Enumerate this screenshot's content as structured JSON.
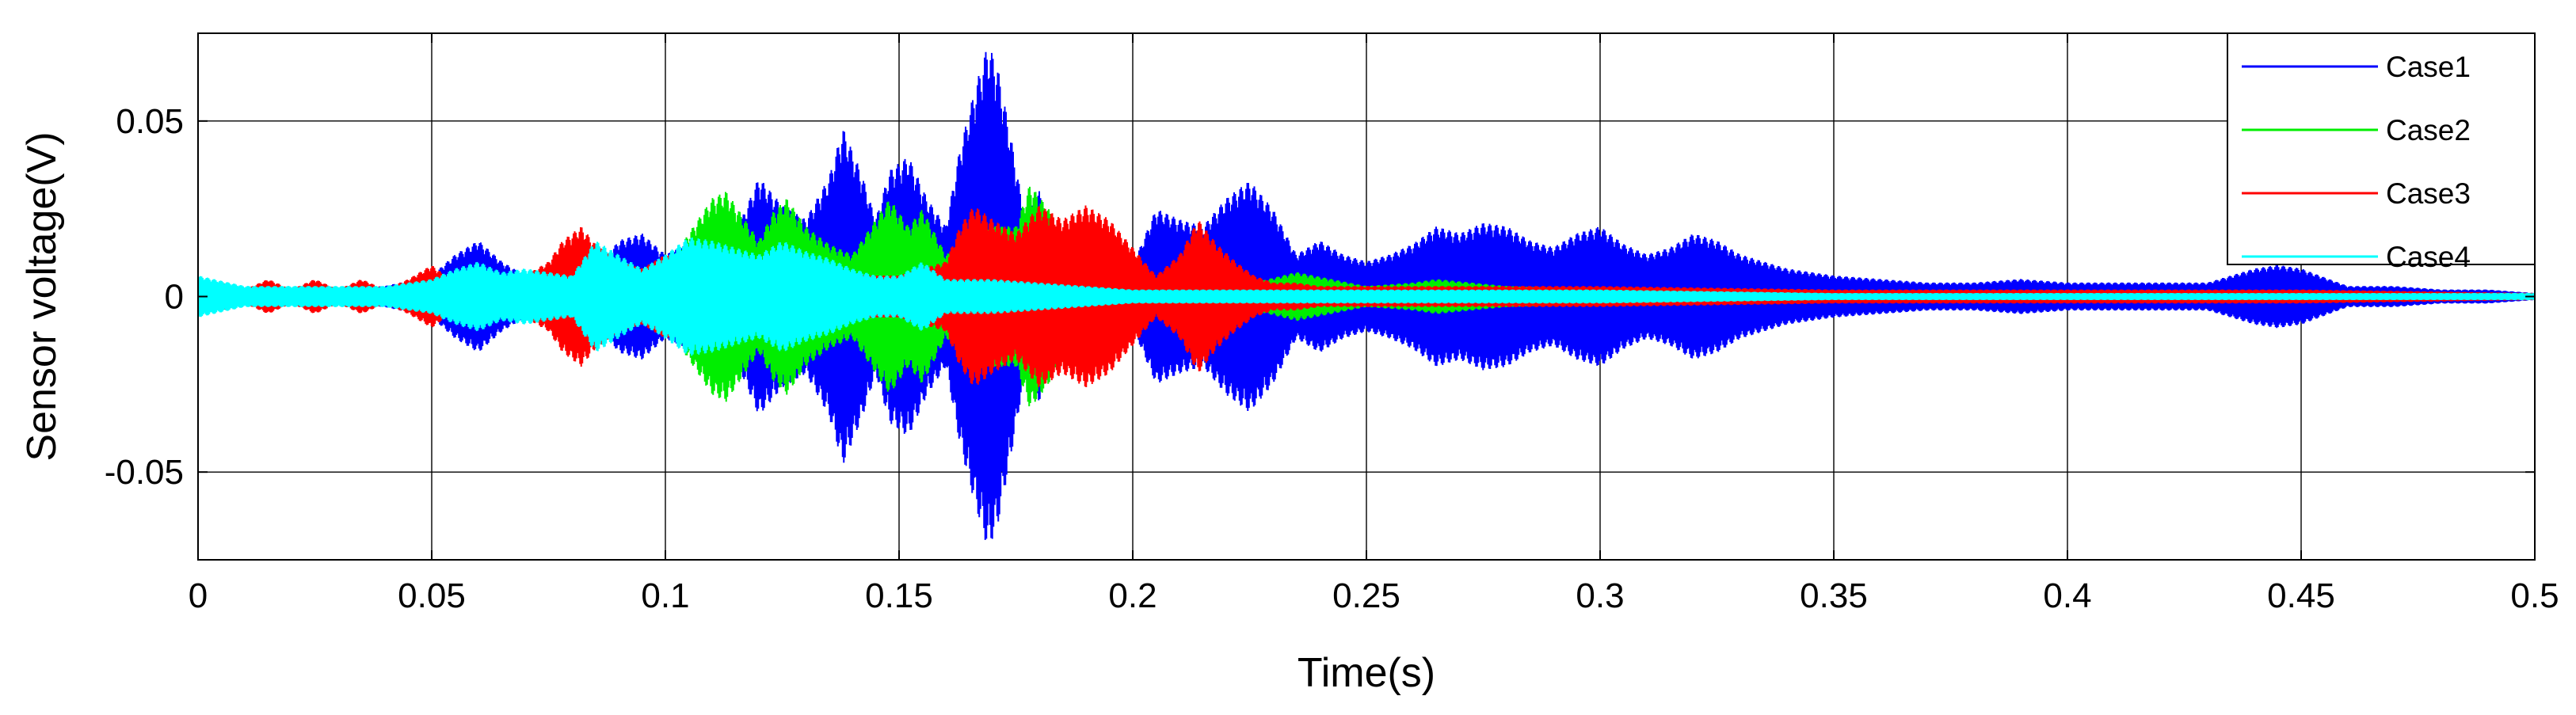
{
  "chart_data": {
    "type": "line",
    "title": "",
    "xlabel": "Time(s)",
    "ylabel": "Sensor voltage(V)",
    "xlim": [
      0,
      0.5
    ],
    "ylim": [
      -0.075,
      0.075
    ],
    "grid": true,
    "legend_position": "top-right",
    "x_ticks": [
      0,
      0.05,
      0.1,
      0.15,
      0.2,
      0.25,
      0.3,
      0.35,
      0.4,
      0.45,
      0.5
    ],
    "x_tick_labels": [
      "0",
      "0.05",
      "0.1",
      "0.15",
      "0.2",
      "0.25",
      "0.3",
      "0.35",
      "0.4",
      "0.45",
      "0.5"
    ],
    "y_ticks": [
      0.05,
      0,
      -0.05
    ],
    "y_tick_labels": [
      "0.05",
      "0",
      "-0.05"
    ],
    "series": [
      {
        "name": "Case1",
        "color": "#0000ff",
        "envelope": {
          "x": [
            0,
            0.01,
            0.02,
            0.03,
            0.04,
            0.05,
            0.055,
            0.06,
            0.065,
            0.07,
            0.075,
            0.08,
            0.085,
            0.09,
            0.095,
            0.1,
            0.105,
            0.11,
            0.115,
            0.12,
            0.125,
            0.13,
            0.135,
            0.138,
            0.142,
            0.145,
            0.148,
            0.152,
            0.156,
            0.16,
            0.163,
            0.166,
            0.169,
            0.171,
            0.174,
            0.177,
            0.18,
            0.183,
            0.186,
            0.19,
            0.195,
            0.2,
            0.205,
            0.21,
            0.215,
            0.22,
            0.225,
            0.23,
            0.235,
            0.24,
            0.245,
            0.25,
            0.255,
            0.26,
            0.265,
            0.27,
            0.275,
            0.28,
            0.285,
            0.29,
            0.295,
            0.3,
            0.305,
            0.31,
            0.315,
            0.32,
            0.325,
            0.33,
            0.335,
            0.34,
            0.345,
            0.35,
            0.36,
            0.37,
            0.38,
            0.39,
            0.4,
            0.41,
            0.42,
            0.43,
            0.44,
            0.445,
            0.45,
            0.46,
            0.47,
            0.48,
            0.49,
            0.5
          ],
          "amplitude": [
            0.002,
            0.002,
            0.002,
            0.002,
            0.003,
            0.006,
            0.012,
            0.016,
            0.01,
            0.006,
            0.008,
            0.01,
            0.007,
            0.016,
            0.018,
            0.012,
            0.015,
            0.014,
            0.018,
            0.034,
            0.026,
            0.022,
            0.034,
            0.048,
            0.035,
            0.022,
            0.036,
            0.04,
            0.028,
            0.02,
            0.042,
            0.058,
            0.072,
            0.066,
            0.045,
            0.022,
            0.03,
            0.018,
            0.014,
            0.012,
            0.01,
            0.009,
            0.025,
            0.022,
            0.02,
            0.028,
            0.033,
            0.025,
            0.012,
            0.016,
            0.012,
            0.01,
            0.012,
            0.015,
            0.02,
            0.018,
            0.021,
            0.02,
            0.016,
            0.014,
            0.018,
            0.02,
            0.015,
            0.012,
            0.014,
            0.018,
            0.016,
            0.012,
            0.01,
            0.008,
            0.007,
            0.006,
            0.005,
            0.004,
            0.004,
            0.005,
            0.004,
            0.004,
            0.004,
            0.004,
            0.008,
            0.009,
            0.008,
            0.003,
            0.003,
            0.002,
            0.002,
            0.001
          ]
        }
      },
      {
        "name": "Case2",
        "color": "#00ee00",
        "envelope": {
          "x": [
            0,
            0.02,
            0.04,
            0.06,
            0.08,
            0.09,
            0.1,
            0.105,
            0.11,
            0.113,
            0.116,
            0.12,
            0.123,
            0.126,
            0.13,
            0.135,
            0.14,
            0.145,
            0.148,
            0.152,
            0.155,
            0.16,
            0.165,
            0.17,
            0.175,
            0.178,
            0.182,
            0.185,
            0.19,
            0.2,
            0.21,
            0.22,
            0.235,
            0.25,
            0.26,
            0.265,
            0.28,
            0.3,
            0.35,
            0.4,
            0.45,
            0.5
          ],
          "amplitude": [
            0.001,
            0.001,
            0.002,
            0.003,
            0.004,
            0.005,
            0.008,
            0.018,
            0.028,
            0.03,
            0.024,
            0.016,
            0.024,
            0.028,
            0.02,
            0.015,
            0.012,
            0.022,
            0.028,
            0.02,
            0.025,
            0.012,
            0.015,
            0.02,
            0.02,
            0.032,
            0.025,
            0.015,
            0.008,
            0.005,
            0.003,
            0.002,
            0.007,
            0.003,
            0.004,
            0.005,
            0.003,
            0.002,
            0.001,
            0.001,
            0.001,
            0.001
          ]
        }
      },
      {
        "name": "Case3",
        "color": "#ff0000",
        "envelope": {
          "x": [
            0,
            0.005,
            0.01,
            0.015,
            0.02,
            0.025,
            0.03,
            0.035,
            0.04,
            0.045,
            0.05,
            0.055,
            0.06,
            0.065,
            0.07,
            0.075,
            0.078,
            0.082,
            0.085,
            0.09,
            0.095,
            0.1,
            0.11,
            0.12,
            0.13,
            0.14,
            0.15,
            0.16,
            0.163,
            0.166,
            0.17,
            0.175,
            0.18,
            0.185,
            0.19,
            0.195,
            0.2,
            0.205,
            0.21,
            0.214,
            0.218,
            0.222,
            0.226,
            0.23,
            0.235,
            0.24,
            0.25,
            0.26,
            0.27,
            0.3,
            0.35,
            0.4,
            0.45,
            0.5
          ],
          "amplitude": [
            0.002,
            0.004,
            0.002,
            0.005,
            0.002,
            0.005,
            0.002,
            0.005,
            0.002,
            0.005,
            0.009,
            0.004,
            0.003,
            0.004,
            0.006,
            0.01,
            0.016,
            0.02,
            0.015,
            0.01,
            0.008,
            0.012,
            0.008,
            0.006,
            0.007,
            0.006,
            0.006,
            0.01,
            0.02,
            0.026,
            0.022,
            0.018,
            0.026,
            0.022,
            0.026,
            0.022,
            0.014,
            0.006,
            0.012,
            0.022,
            0.015,
            0.01,
            0.006,
            0.004,
            0.004,
            0.003,
            0.003,
            0.003,
            0.003,
            0.003,
            0.002,
            0.002,
            0.002,
            0.001
          ]
        }
      },
      {
        "name": "Case4",
        "color": "#00ffff",
        "envelope": {
          "x": [
            0,
            0.01,
            0.02,
            0.03,
            0.04,
            0.045,
            0.05,
            0.055,
            0.06,
            0.065,
            0.07,
            0.075,
            0.08,
            0.085,
            0.09,
            0.095,
            0.1,
            0.105,
            0.11,
            0.115,
            0.12,
            0.125,
            0.13,
            0.135,
            0.14,
            0.145,
            0.15,
            0.155,
            0.16,
            0.17,
            0.18,
            0.19,
            0.2,
            0.25,
            0.3,
            0.35,
            0.4,
            0.45,
            0.5
          ],
          "amplitude": [
            0.006,
            0.003,
            0.003,
            0.003,
            0.003,
            0.004,
            0.005,
            0.008,
            0.01,
            0.007,
            0.008,
            0.007,
            0.006,
            0.016,
            0.012,
            0.008,
            0.012,
            0.017,
            0.016,
            0.014,
            0.012,
            0.016,
            0.013,
            0.011,
            0.008,
            0.006,
            0.006,
            0.01,
            0.005,
            0.005,
            0.004,
            0.003,
            0.002,
            0.002,
            0.002,
            0.001,
            0.001,
            0.001,
            0.001
          ]
        }
      }
    ]
  }
}
